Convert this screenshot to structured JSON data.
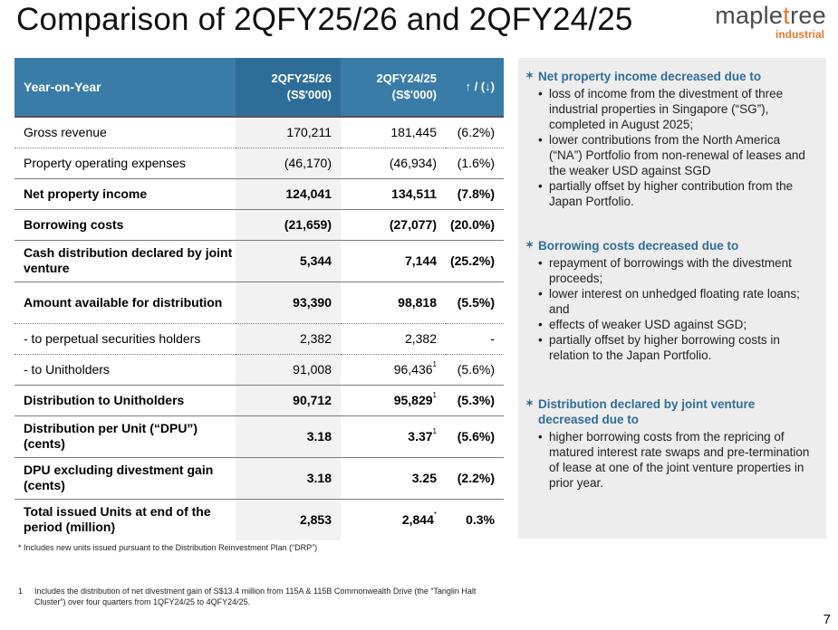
{
  "title": "Comparison of 2QFY25/26 and 2QFY24/25",
  "logo": {
    "main_a": "maple",
    "main_leaf": "t",
    "main_b": "ree",
    "sub": "industrial"
  },
  "table": {
    "headers": {
      "label": "Year-on-Year",
      "col1_line1": "2QFY25/26",
      "col1_line2": "(S$'000)",
      "col2_line1": "2QFY24/25",
      "col2_line2": "(S$'000)",
      "col3": "↑ / (↓)"
    },
    "rows": [
      {
        "label": "Gross revenue",
        "v1": "170,211",
        "v2": "181,445",
        "sup": "",
        "chg": "(6.2%)"
      },
      {
        "label": "Property operating expenses",
        "v1": "(46,170)",
        "v2": "(46,934)",
        "sup": "",
        "chg": "(1.6%)"
      },
      {
        "label": "Net property income",
        "v1": "124,041",
        "v2": "134,511",
        "sup": "",
        "chg": "(7.8%)"
      },
      {
        "label": "Borrowing costs",
        "v1": "(21,659)",
        "v2": "(27,077)",
        "sup": "",
        "chg": "(20.0%)"
      },
      {
        "label": "Cash distribution declared by joint venture",
        "v1": "5,344",
        "v2": "7,144",
        "sup": "",
        "chg": "(25.2%)"
      },
      {
        "label": "Amount available for distribution",
        "v1": "93,390",
        "v2": "98,818",
        "sup": "",
        "chg": "(5.5%)"
      },
      {
        "label": "- to perpetual securities holders",
        "v1": "2,382",
        "v2": "2,382",
        "sup": "",
        "chg": "-"
      },
      {
        "label": "- to Unitholders",
        "v1": "91,008",
        "v2": "96,436",
        "sup": "1",
        "chg": "(5.6%)"
      },
      {
        "label": "Distribution to Unitholders",
        "v1": "90,712",
        "v2": "95,829",
        "sup": "1",
        "chg": "(5.3%)"
      },
      {
        "label": "Distribution per Unit (“DPU”) (cents)",
        "v1": "3.18",
        "v2": "3.37",
        "sup": "1",
        "chg": "(5.6%)"
      },
      {
        "label": "DPU excluding divestment gain (cents)",
        "v1": "3.18",
        "v2": "3.25",
        "sup": "",
        "chg": "(2.2%)"
      },
      {
        "label": "Total issued Units at end of the period (million)",
        "v1": "2,853",
        "v2": "2,844",
        "sup": "*",
        "chg": "0.3%"
      }
    ]
  },
  "notes": {
    "drp": "* Includes new units issued pursuant to the Distribution Reinvestment Plan (“DRP”)",
    "fn_mark": "1",
    "fn_text": "Includes the distribution of net divestment gain of S$13.4 million from 115A & 115B Commonwealth Drive (the “Tanglin Halt Cluster”) over four quarters from 1QFY24/25 to 4QFY24/25."
  },
  "panel": {
    "sections": [
      {
        "heading": "Net property income decreased due to",
        "points": [
          "loss of income from the divestment of three industrial properties in Singapore (“SG”), completed in August 2025;",
          "lower contributions from the North America (“NA”) Portfolio from non-renewal of leases and the weaker USD against SGD",
          "partially offset by higher contribution from the Japan Portfolio."
        ]
      },
      {
        "heading": "Borrowing costs decreased due to",
        "points": [
          "repayment of borrowings with the divestment proceeds;",
          "lower interest on unhedged floating rate loans; and",
          "effects of weaker USD against SGD;",
          "partially offset by higher borrowing costs in relation to the Japan Portfolio."
        ]
      },
      {
        "heading": "Distribution declared by joint venture decreased due to",
        "points": [
          "higher borrowing costs from the repricing of matured interest rate swaps and pre-termination of lease at one of the joint venture properties in prior year."
        ]
      }
    ]
  },
  "page_number": "7"
}
